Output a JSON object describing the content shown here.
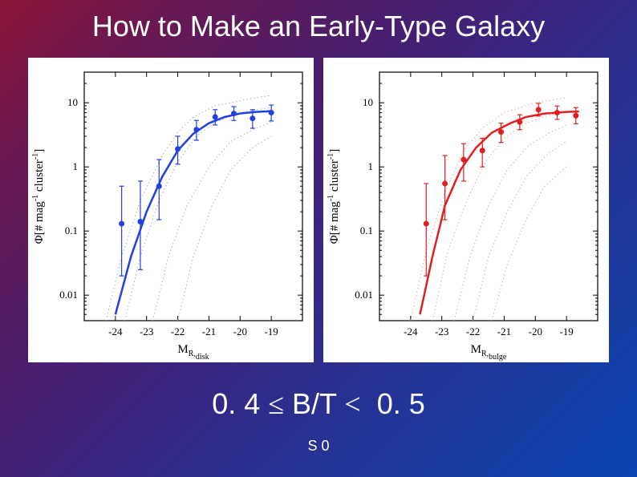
{
  "title": "How to Make an Early-Type Galaxy",
  "subtitle_left": "0. 4",
  "subtitle_mid1": "≤",
  "subtitle_mid2": "B/T",
  "subtitle_mid3": "<",
  "subtitle_right": "0. 5",
  "footnote": "S 0",
  "left_chart": {
    "type": "scatter-log",
    "ylabel": "Φ[# mag⁻¹ cluster⁻¹]",
    "xlabel": "M_R,disk",
    "xlim": [
      -25,
      -18
    ],
    "xticks": [
      -24,
      -23,
      -22,
      -21,
      -20,
      -19
    ],
    "ylim": [
      0.004,
      30
    ],
    "yticks": [
      0.01,
      0.1,
      1,
      10
    ],
    "ytick_labels": [
      "0.01",
      "0.1",
      "1",
      "10"
    ],
    "series_color": "#2040e0",
    "curve_linewidth": 2.5,
    "dotted_color": "#a0a0e0",
    "data_points": [
      {
        "x": -23.8,
        "y": 0.13,
        "err_lo": 0.02,
        "err_hi": 0.5
      },
      {
        "x": -23.2,
        "y": 0.14,
        "err_lo": 0.025,
        "err_hi": 0.6
      },
      {
        "x": -22.6,
        "y": 0.5,
        "err_lo": 0.15,
        "err_hi": 1.3
      },
      {
        "x": -22.0,
        "y": 1.9,
        "err_lo": 1.1,
        "err_hi": 3.0
      },
      {
        "x": -21.4,
        "y": 3.8,
        "err_lo": 2.6,
        "err_hi": 5.3
      },
      {
        "x": -20.8,
        "y": 6.0,
        "err_lo": 4.5,
        "err_hi": 7.8
      },
      {
        "x": -20.2,
        "y": 6.8,
        "err_lo": 5.3,
        "err_hi": 8.7
      },
      {
        "x": -19.6,
        "y": 5.7,
        "err_lo": 4.0,
        "err_hi": 7.8
      },
      {
        "x": -19.0,
        "y": 7.0,
        "err_lo": 5.2,
        "err_hi": 9.2
      }
    ],
    "fit_curve": [
      {
        "x": -24.0,
        "y": 0.005
      },
      {
        "x": -23.5,
        "y": 0.04
      },
      {
        "x": -23.0,
        "y": 0.2
      },
      {
        "x": -22.5,
        "y": 0.7
      },
      {
        "x": -22.0,
        "y": 1.8
      },
      {
        "x": -21.5,
        "y": 3.3
      },
      {
        "x": -21.0,
        "y": 4.8
      },
      {
        "x": -20.5,
        "y": 6.0
      },
      {
        "x": -20.0,
        "y": 6.8
      },
      {
        "x": -19.5,
        "y": 7.2
      },
      {
        "x": -19.0,
        "y": 7.4
      }
    ],
    "dotted_curves": [
      [
        {
          "x": -24.3,
          "y": 0.004
        },
        {
          "x": -23.8,
          "y": 0.04
        },
        {
          "x": -23.2,
          "y": 0.3
        },
        {
          "x": -22.5,
          "y": 1.5
        },
        {
          "x": -22.0,
          "y": 3.5
        },
        {
          "x": -21.5,
          "y": 6.0
        },
        {
          "x": -20.8,
          "y": 9.0
        },
        {
          "x": -19.5,
          "y": 12.0
        },
        {
          "x": -19.0,
          "y": 13.0
        }
      ],
      [
        {
          "x": -23.7,
          "y": 0.004
        },
        {
          "x": -23.2,
          "y": 0.04
        },
        {
          "x": -22.6,
          "y": 0.3
        },
        {
          "x": -22.0,
          "y": 1.2
        },
        {
          "x": -21.4,
          "y": 3.0
        },
        {
          "x": -20.8,
          "y": 5.0
        },
        {
          "x": -20.0,
          "y": 7.0
        },
        {
          "x": -19.0,
          "y": 8.5
        }
      ],
      [
        {
          "x": -22.8,
          "y": 0.004
        },
        {
          "x": -22.3,
          "y": 0.04
        },
        {
          "x": -21.7,
          "y": 0.25
        },
        {
          "x": -21.0,
          "y": 1.0
        },
        {
          "x": -20.3,
          "y": 2.5
        },
        {
          "x": -19.5,
          "y": 4.0
        },
        {
          "x": -19.0,
          "y": 5.0
        }
      ],
      [
        {
          "x": -22.0,
          "y": 0.004
        },
        {
          "x": -21.5,
          "y": 0.04
        },
        {
          "x": -20.9,
          "y": 0.25
        },
        {
          "x": -20.3,
          "y": 0.9
        },
        {
          "x": -19.6,
          "y": 2.0
        },
        {
          "x": -19.0,
          "y": 3.0
        }
      ]
    ],
    "background_color": "#ffffff",
    "axis_fontsize": 13,
    "label_fontsize": 15
  },
  "right_chart": {
    "type": "scatter-log",
    "ylabel": "Φ[# mag⁻¹ cluster⁻¹]",
    "xlabel": "M_R,bulge",
    "xlim": [
      -25,
      -18
    ],
    "xticks": [
      -24,
      -23,
      -22,
      -21,
      -20,
      -19
    ],
    "ylim": [
      0.004,
      30
    ],
    "yticks": [
      0.01,
      0.1,
      1,
      10
    ],
    "ytick_labels": [
      "0.01",
      "0.1",
      "1",
      "10"
    ],
    "series_color": "#e02020",
    "curve_linewidth": 2.5,
    "dotted_color": "#e0a0a0",
    "data_points": [
      {
        "x": -23.5,
        "y": 0.13,
        "err_lo": 0.02,
        "err_hi": 0.55
      },
      {
        "x": -22.9,
        "y": 0.55,
        "err_lo": 0.15,
        "err_hi": 1.5
      },
      {
        "x": -22.3,
        "y": 1.3,
        "err_lo": 0.6,
        "err_hi": 2.3
      },
      {
        "x": -21.7,
        "y": 1.8,
        "err_lo": 1.0,
        "err_hi": 2.8
      },
      {
        "x": -21.1,
        "y": 3.5,
        "err_lo": 2.4,
        "err_hi": 4.8
      },
      {
        "x": -20.5,
        "y": 5.0,
        "err_lo": 3.8,
        "err_hi": 6.5
      },
      {
        "x": -19.9,
        "y": 7.8,
        "err_lo": 6.2,
        "err_hi": 9.8
      },
      {
        "x": -19.3,
        "y": 7.0,
        "err_lo": 5.5,
        "err_hi": 8.9
      },
      {
        "x": -18.7,
        "y": 6.3,
        "err_lo": 4.7,
        "err_hi": 8.4
      }
    ],
    "fit_curve": [
      {
        "x": -23.7,
        "y": 0.005
      },
      {
        "x": -23.3,
        "y": 0.04
      },
      {
        "x": -22.9,
        "y": 0.25
      },
      {
        "x": -22.4,
        "y": 0.9
      },
      {
        "x": -21.9,
        "y": 2.0
      },
      {
        "x": -21.4,
        "y": 3.4
      },
      {
        "x": -20.8,
        "y": 4.8
      },
      {
        "x": -20.3,
        "y": 6.0
      },
      {
        "x": -19.7,
        "y": 6.8
      },
      {
        "x": -19.0,
        "y": 7.2
      },
      {
        "x": -18.6,
        "y": 7.3
      }
    ],
    "dotted_curves": [
      [
        {
          "x": -24.0,
          "y": 0.004
        },
        {
          "x": -23.5,
          "y": 0.05
        },
        {
          "x": -22.9,
          "y": 0.4
        },
        {
          "x": -22.3,
          "y": 1.8
        },
        {
          "x": -21.7,
          "y": 4.0
        },
        {
          "x": -21.0,
          "y": 7.0
        },
        {
          "x": -20.0,
          "y": 10.0
        },
        {
          "x": -19.0,
          "y": 12.0
        }
      ],
      [
        {
          "x": -23.3,
          "y": 0.004
        },
        {
          "x": -22.8,
          "y": 0.05
        },
        {
          "x": -22.2,
          "y": 0.3
        },
        {
          "x": -21.6,
          "y": 1.2
        },
        {
          "x": -21.0,
          "y": 2.8
        },
        {
          "x": -20.3,
          "y": 4.8
        },
        {
          "x": -19.5,
          "y": 6.5
        },
        {
          "x": -19.0,
          "y": 7.5
        }
      ],
      [
        {
          "x": -22.6,
          "y": 0.004
        },
        {
          "x": -22.1,
          "y": 0.04
        },
        {
          "x": -21.5,
          "y": 0.25
        },
        {
          "x": -20.9,
          "y": 0.9
        },
        {
          "x": -20.2,
          "y": 2.2
        },
        {
          "x": -19.5,
          "y": 3.5
        },
        {
          "x": -19.0,
          "y": 4.5
        }
      ],
      [
        {
          "x": -22.0,
          "y": 0.004
        },
        {
          "x": -21.5,
          "y": 0.04
        },
        {
          "x": -20.9,
          "y": 0.2
        },
        {
          "x": -20.3,
          "y": 0.7
        },
        {
          "x": -19.6,
          "y": 1.6
        },
        {
          "x": -19.0,
          "y": 2.5
        }
      ],
      [
        {
          "x": -21.4,
          "y": 0.004
        },
        {
          "x": -20.9,
          "y": 0.03
        },
        {
          "x": -20.3,
          "y": 0.15
        },
        {
          "x": -19.7,
          "y": 0.5
        },
        {
          "x": -19.0,
          "y": 1.0
        }
      ]
    ],
    "background_color": "#ffffff",
    "axis_fontsize": 13,
    "label_fontsize": 15
  }
}
